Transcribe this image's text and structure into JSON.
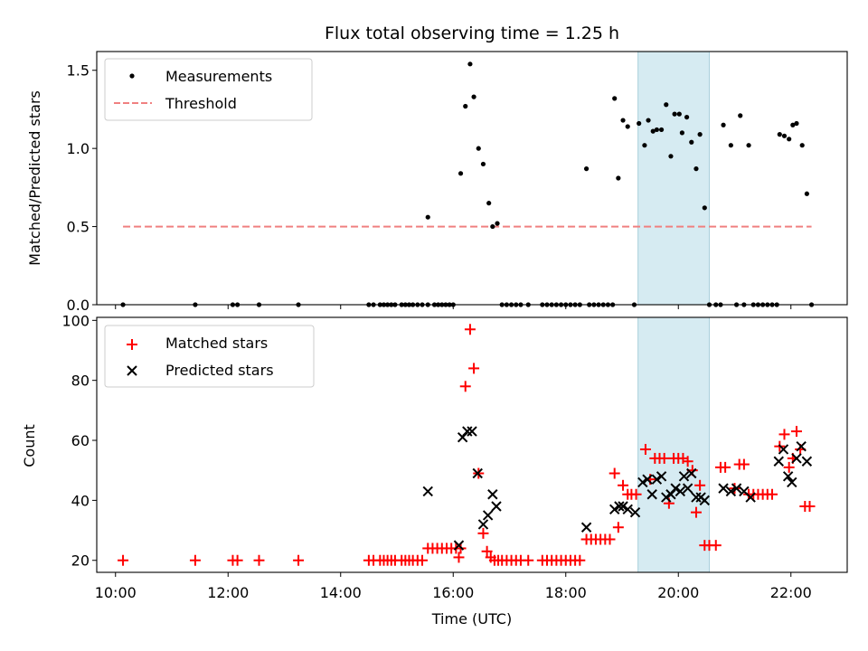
{
  "chart_data": [
    {
      "type": "scatter",
      "title": "Flux total observing time = 1.25 h",
      "xlabel": "",
      "ylabel": "Matched/Predicted stars",
      "xlim": [
        "09:40",
        "23:00"
      ],
      "ylim": [
        0,
        1.62
      ],
      "yticks": [
        0.0,
        0.5,
        1.0,
        1.5
      ],
      "ytick_labels": [
        "0.0",
        "0.5",
        "1.0",
        "1.5"
      ],
      "highlight_span": [
        "19:17",
        "20:33"
      ],
      "highlight_color": "#add8e6",
      "grid": false,
      "legend_position": "top-left",
      "series": [
        {
          "name": "Measurements",
          "color": "#000000",
          "marker": "dot",
          "points": [
            [
              "10:08",
              0
            ],
            [
              "11:25",
              0
            ],
            [
              "12:05",
              0
            ],
            [
              "12:10",
              0
            ],
            [
              "12:33",
              0
            ],
            [
              "13:15",
              0
            ],
            [
              "14:30",
              0
            ],
            [
              "14:35",
              0
            ],
            [
              "14:42",
              0
            ],
            [
              "14:46",
              0
            ],
            [
              "14:50",
              0
            ],
            [
              "14:54",
              0
            ],
            [
              "14:58",
              0
            ],
            [
              "15:05",
              0
            ],
            [
              "15:09",
              0
            ],
            [
              "15:13",
              0
            ],
            [
              "15:17",
              0
            ],
            [
              "15:22",
              0
            ],
            [
              "15:27",
              0
            ],
            [
              "15:33",
              0
            ],
            [
              "15:40",
              0
            ],
            [
              "15:44",
              0
            ],
            [
              "15:48",
              0
            ],
            [
              "15:52",
              0
            ],
            [
              "15:56",
              0
            ],
            [
              "16:00",
              0
            ],
            [
              "15:33",
              0.56
            ],
            [
              "16:08",
              0.84
            ],
            [
              "16:13",
              1.27
            ],
            [
              "16:18",
              1.54
            ],
            [
              "16:22",
              1.33
            ],
            [
              "16:27",
              1.0
            ],
            [
              "16:32",
              0.9
            ],
            [
              "16:38",
              0.65
            ],
            [
              "16:42",
              0.5
            ],
            [
              "16:47",
              0.52
            ],
            [
              "16:52",
              0
            ],
            [
              "16:57",
              0
            ],
            [
              "17:02",
              0
            ],
            [
              "17:07",
              0
            ],
            [
              "17:12",
              0
            ],
            [
              "17:20",
              0
            ],
            [
              "17:35",
              0
            ],
            [
              "17:40",
              0
            ],
            [
              "17:45",
              0
            ],
            [
              "17:50",
              0
            ],
            [
              "17:55",
              0
            ],
            [
              "18:00",
              0
            ],
            [
              "18:05",
              0
            ],
            [
              "18:10",
              0
            ],
            [
              "18:15",
              0
            ],
            [
              "18:22",
              0.87
            ],
            [
              "18:25",
              0
            ],
            [
              "18:30",
              0
            ],
            [
              "18:35",
              0
            ],
            [
              "18:40",
              0
            ],
            [
              "18:45",
              0
            ],
            [
              "18:50",
              0
            ],
            [
              "18:52",
              1.32
            ],
            [
              "18:56",
              0.81
            ],
            [
              "19:01",
              1.18
            ],
            [
              "19:06",
              1.14
            ],
            [
              "19:13",
              0
            ],
            [
              "19:18",
              1.16
            ],
            [
              "19:24",
              1.02
            ],
            [
              "19:28",
              1.18
            ],
            [
              "19:33",
              1.11
            ],
            [
              "19:37",
              1.12
            ],
            [
              "19:42",
              1.12
            ],
            [
              "19:47",
              1.28
            ],
            [
              "19:52",
              0.95
            ],
            [
              "19:56",
              1.22
            ],
            [
              "20:01",
              1.22
            ],
            [
              "20:04",
              1.1
            ],
            [
              "20:09",
              1.2
            ],
            [
              "20:14",
              1.04
            ],
            [
              "20:19",
              0.87
            ],
            [
              "20:23",
              1.09
            ],
            [
              "20:28",
              0.62
            ],
            [
              "20:33",
              0
            ],
            [
              "20:40",
              0
            ],
            [
              "20:45",
              0
            ],
            [
              "20:48",
              1.15
            ],
            [
              "20:56",
              1.02
            ],
            [
              "21:02",
              0
            ],
            [
              "21:06",
              1.21
            ],
            [
              "21:10",
              0
            ],
            [
              "21:15",
              1.02
            ],
            [
              "21:20",
              0
            ],
            [
              "21:25",
              0
            ],
            [
              "21:30",
              0
            ],
            [
              "21:35",
              0
            ],
            [
              "21:40",
              0
            ],
            [
              "21:45",
              0
            ],
            [
              "21:48",
              1.09
            ],
            [
              "21:53",
              1.08
            ],
            [
              "21:58",
              1.06
            ],
            [
              "22:02",
              1.15
            ],
            [
              "22:06",
              1.16
            ],
            [
              "22:12",
              1.02
            ],
            [
              "22:17",
              0.71
            ],
            [
              "22:22",
              0
            ]
          ]
        },
        {
          "name": "Threshold",
          "color": "#f08080",
          "line_style": "dashed",
          "points": [
            [
              "10:08",
              0.5
            ],
            [
              "22:22",
              0.5
            ]
          ]
        }
      ]
    },
    {
      "type": "scatter",
      "title": "",
      "xlabel": "Time (UTC)",
      "ylabel": "Count",
      "xlim": [
        "09:40",
        "23:00"
      ],
      "ylim": [
        16,
        101
      ],
      "xticks": [
        "10:00",
        "12:00",
        "14:00",
        "16:00",
        "18:00",
        "20:00",
        "22:00"
      ],
      "yticks": [
        20,
        40,
        60,
        80,
        100
      ],
      "ytick_labels": [
        "20",
        "40",
        "60",
        "80",
        "100"
      ],
      "highlight_span": [
        "19:17",
        "20:33"
      ],
      "highlight_color": "#add8e6",
      "grid": false,
      "legend_position": "top-left",
      "series": [
        {
          "name": "Matched stars",
          "color": "#ff0000",
          "marker": "plus",
          "points": [
            [
              "10:08",
              20
            ],
            [
              "11:25",
              20
            ],
            [
              "12:05",
              20
            ],
            [
              "12:10",
              20
            ],
            [
              "12:33",
              20
            ],
            [
              "13:15",
              20
            ],
            [
              "14:30",
              20
            ],
            [
              "14:35",
              20
            ],
            [
              "14:42",
              20
            ],
            [
              "14:46",
              20
            ],
            [
              "14:50",
              20
            ],
            [
              "14:54",
              20
            ],
            [
              "14:58",
              20
            ],
            [
              "15:05",
              20
            ],
            [
              "15:09",
              20
            ],
            [
              "15:13",
              20
            ],
            [
              "15:17",
              20
            ],
            [
              "15:22",
              20
            ],
            [
              "15:27",
              20
            ],
            [
              "15:33",
              24
            ],
            [
              "15:38",
              24
            ],
            [
              "15:43",
              24
            ],
            [
              "15:48",
              24
            ],
            [
              "15:53",
              24
            ],
            [
              "15:58",
              24
            ],
            [
              "16:03",
              24
            ],
            [
              "16:06",
              21
            ],
            [
              "16:08",
              24
            ],
            [
              "16:13",
              78
            ],
            [
              "16:18",
              97
            ],
            [
              "16:22",
              84
            ],
            [
              "16:27",
              49
            ],
            [
              "16:32",
              29
            ],
            [
              "16:36",
              23
            ],
            [
              "16:40",
              21
            ],
            [
              "16:44",
              20
            ],
            [
              "16:48",
              20
            ],
            [
              "16:52",
              20
            ],
            [
              "16:57",
              20
            ],
            [
              "17:02",
              20
            ],
            [
              "17:07",
              20
            ],
            [
              "17:12",
              20
            ],
            [
              "17:20",
              20
            ],
            [
              "17:35",
              20
            ],
            [
              "17:40",
              20
            ],
            [
              "17:45",
              20
            ],
            [
              "17:50",
              20
            ],
            [
              "17:55",
              20
            ],
            [
              "18:00",
              20
            ],
            [
              "18:05",
              20
            ],
            [
              "18:10",
              20
            ],
            [
              "18:15",
              20
            ],
            [
              "18:22",
              27
            ],
            [
              "18:27",
              27
            ],
            [
              "18:32",
              27
            ],
            [
              "18:37",
              27
            ],
            [
              "18:42",
              27
            ],
            [
              "18:47",
              27
            ],
            [
              "18:52",
              49
            ],
            [
              "18:56",
              31
            ],
            [
              "19:01",
              45
            ],
            [
              "19:06",
              42
            ],
            [
              "19:10",
              42
            ],
            [
              "19:15",
              42
            ],
            [
              "19:25",
              57
            ],
            [
              "19:30",
              47
            ],
            [
              "19:35",
              54
            ],
            [
              "19:40",
              54
            ],
            [
              "19:45",
              54
            ],
            [
              "19:50",
              39
            ],
            [
              "19:55",
              54
            ],
            [
              "20:00",
              54
            ],
            [
              "20:05",
              54
            ],
            [
              "20:10",
              53
            ],
            [
              "20:15",
              50
            ],
            [
              "20:19",
              36
            ],
            [
              "20:23",
              45
            ],
            [
              "20:28",
              25
            ],
            [
              "20:33",
              25
            ],
            [
              "20:40",
              25
            ],
            [
              "20:45",
              51
            ],
            [
              "20:50",
              51
            ],
            [
              "21:00",
              44
            ],
            [
              "21:05",
              52
            ],
            [
              "21:10",
              52
            ],
            [
              "21:15",
              42
            ],
            [
              "21:20",
              42
            ],
            [
              "21:25",
              42
            ],
            [
              "21:30",
              42
            ],
            [
              "21:35",
              42
            ],
            [
              "21:40",
              42
            ],
            [
              "21:48",
              58
            ],
            [
              "21:53",
              62
            ],
            [
              "21:58",
              51
            ],
            [
              "22:02",
              54
            ],
            [
              "22:06",
              63
            ],
            [
              "22:10",
              57
            ],
            [
              "22:15",
              38
            ],
            [
              "22:20",
              38
            ]
          ]
        },
        {
          "name": "Predicted stars",
          "color": "#000000",
          "marker": "x",
          "points": [
            [
              "15:33",
              43
            ],
            [
              "16:06",
              25
            ],
            [
              "16:10",
              61
            ],
            [
              "16:15",
              63
            ],
            [
              "16:20",
              63
            ],
            [
              "16:26",
              49
            ],
            [
              "16:32",
              32
            ],
            [
              "16:37",
              35
            ],
            [
              "16:42",
              42
            ],
            [
              "16:46",
              38
            ],
            [
              "18:22",
              31
            ],
            [
              "18:52",
              37
            ],
            [
              "18:57",
              38
            ],
            [
              "19:01",
              38
            ],
            [
              "19:06",
              37
            ],
            [
              "19:14",
              36
            ],
            [
              "19:22",
              46
            ],
            [
              "19:27",
              47
            ],
            [
              "19:32",
              42
            ],
            [
              "19:37",
              47
            ],
            [
              "19:42",
              48
            ],
            [
              "19:47",
              41
            ],
            [
              "19:52",
              42
            ],
            [
              "19:57",
              44
            ],
            [
              "20:02",
              43
            ],
            [
              "20:06",
              48
            ],
            [
              "20:10",
              44
            ],
            [
              "20:14",
              49
            ],
            [
              "20:19",
              41
            ],
            [
              "20:24",
              41
            ],
            [
              "20:28",
              40
            ],
            [
              "20:48",
              44
            ],
            [
              "20:56",
              43
            ],
            [
              "21:02",
              44
            ],
            [
              "21:10",
              43
            ],
            [
              "21:17",
              41
            ],
            [
              "21:47",
              53
            ],
            [
              "21:52",
              57
            ],
            [
              "21:57",
              48
            ],
            [
              "22:01",
              46
            ],
            [
              "22:06",
              54
            ],
            [
              "22:11",
              58
            ],
            [
              "22:17",
              53
            ]
          ]
        }
      ]
    }
  ]
}
